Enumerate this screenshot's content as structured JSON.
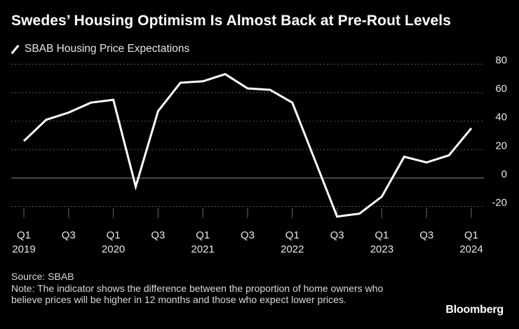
{
  "title": "Swedes’ Housing Optimism Is Almost Back at Pre-Rout Levels",
  "colors": {
    "background": "#000000",
    "line": "#ffffff",
    "grid": "#5a5a5a",
    "text": "#ffffff"
  },
  "chart_data": {
    "type": "line",
    "title": "Swedes’ Housing Optimism Is Almost Back at Pre-Rout Levels",
    "xlabel": "",
    "ylabel": "",
    "ylim": [
      -30,
      80
    ],
    "yticks": [
      80,
      60,
      40,
      20,
      0,
      -20
    ],
    "ytick_labels": [
      "80",
      "60",
      "40",
      "20",
      "0",
      "-20"
    ],
    "grid": true,
    "legend": "top-left",
    "x_quarters": [
      "Q1 2019",
      "Q2 2019",
      "Q3 2019",
      "Q4 2019",
      "Q1 2020",
      "Q2 2020",
      "Q3 2020",
      "Q4 2020",
      "Q1 2021",
      "Q2 2021",
      "Q3 2021",
      "Q4 2021",
      "Q1 2022",
      "Q2 2022",
      "Q3 2022",
      "Q4 2022",
      "Q1 2023",
      "Q2 2023",
      "Q3 2023",
      "Q4 2023",
      "Q1 2024"
    ],
    "xtick_labels": [
      {
        "quarter": "Q1",
        "year": "2019",
        "index": 0
      },
      {
        "quarter": "Q3",
        "year": "",
        "index": 2
      },
      {
        "quarter": "Q1",
        "year": "2020",
        "index": 4
      },
      {
        "quarter": "Q3",
        "year": "",
        "index": 6
      },
      {
        "quarter": "Q1",
        "year": "2021",
        "index": 8
      },
      {
        "quarter": "Q3",
        "year": "",
        "index": 10
      },
      {
        "quarter": "Q1",
        "year": "2022",
        "index": 12
      },
      {
        "quarter": "Q3",
        "year": "",
        "index": 14
      },
      {
        "quarter": "Q1",
        "year": "2023",
        "index": 16
      },
      {
        "quarter": "Q3",
        "year": "",
        "index": 18
      },
      {
        "quarter": "Q1",
        "year": "2024",
        "index": 20
      }
    ],
    "series": [
      {
        "name": "SBAB Housing Price Expectations",
        "values": [
          26,
          41,
          46,
          53,
          55,
          -6,
          47,
          67,
          68,
          73,
          63,
          62,
          53,
          13,
          -27,
          -25,
          -13,
          15,
          11,
          16,
          35
        ]
      }
    ]
  },
  "footer": {
    "source": "Source: SBAB",
    "note": "Note: The indicator shows the difference between the proportion of home owners who believe prices will be higher in 12 months and those who expect lower prices."
  },
  "brand": "Bloomberg"
}
